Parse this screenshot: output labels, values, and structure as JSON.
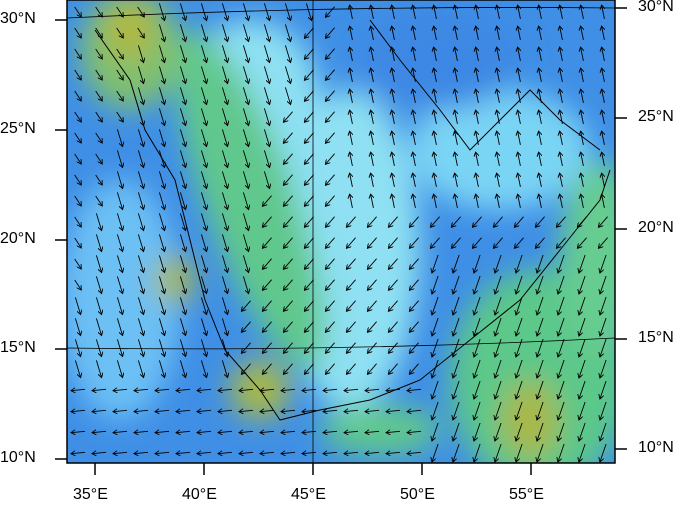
{
  "map": {
    "type": "wind-vector map over shaded field",
    "region": "Red Sea / Arabian Peninsula",
    "lon_range": [
      33.8,
      58.7
    ],
    "lat_range": [
      9.7,
      31
    ],
    "left_lat_labels": [
      "30°N",
      "25°N",
      "20°N",
      "15°N",
      "10°N"
    ],
    "right_lat_labels": [
      "30°N",
      "25°N",
      "20°N",
      "15°N",
      "10°N"
    ],
    "lon_labels": [
      "35°E",
      "40°E",
      "45°E",
      "50°E",
      "55°E"
    ],
    "colors": {
      "deep": "#2f7fe0",
      "mid": "#5fb0f0",
      "light": "#90e4f4",
      "green": "#5cc88a",
      "yellow": "#a8b848"
    }
  }
}
